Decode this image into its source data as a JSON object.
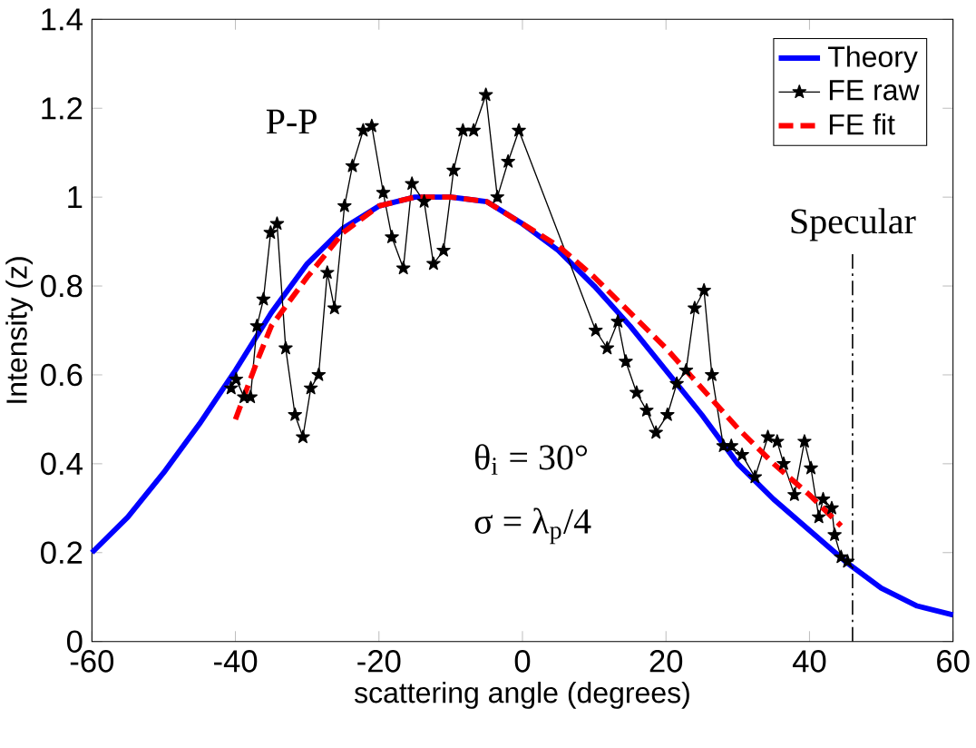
{
  "chart_data": {
    "type": "line",
    "xlabel": "scattering angle (degrees)",
    "ylabel": "Intensity (z)",
    "xlim": [
      -60,
      60
    ],
    "ylim": [
      0,
      1.4
    ],
    "xticks": [
      -60,
      -40,
      -20,
      0,
      20,
      40,
      60
    ],
    "yticks": [
      0,
      0.2,
      0.4,
      0.6,
      0.8,
      1,
      1.2,
      1.4
    ],
    "grid": false,
    "legend": "top right",
    "annotations": [
      "P-P",
      "θ$_{i}$ = 30°",
      "σ = λ$_{p}$/4"
    ],
    "ref_lines": [
      {
        "axis": "x",
        "value": 46,
        "label": "Specular",
        "line_style": "dashdot",
        "color": "#000000"
      }
    ],
    "series": [
      {
        "name": "Theory",
        "color": "#0000ff",
        "marker": "none",
        "line_style": "solid",
        "x": [
          -60,
          -55,
          -50,
          -45,
          -40,
          -35,
          -30,
          -25,
          -20,
          -15,
          -10,
          -5,
          0,
          5,
          10,
          15,
          20,
          25,
          30,
          35,
          40,
          45,
          50,
          55,
          60
        ],
        "values": [
          0.2,
          0.28,
          0.38,
          0.49,
          0.61,
          0.74,
          0.85,
          0.93,
          0.98,
          1.0,
          1.0,
          0.99,
          0.94,
          0.88,
          0.8,
          0.71,
          0.61,
          0.51,
          0.4,
          0.32,
          0.25,
          0.18,
          0.12,
          0.08,
          0.06
        ]
      },
      {
        "name": "FE raw",
        "color": "#000000",
        "marker": "star",
        "line_style": "solid",
        "x": [
          -40.6,
          -39.9,
          -38.8,
          -37.9,
          -37.0,
          -36.1,
          -35.1,
          -34.2,
          -33.0,
          -31.7,
          -30.6,
          -29.5,
          -28.4,
          -27.2,
          -26.2,
          -24.8,
          -23.7,
          -22.2,
          -21.0,
          -19.4,
          -18.2,
          -16.6,
          -15.4,
          -13.7,
          -12.4,
          -11.0,
          -9.6,
          -8.3,
          -6.8,
          -5.1,
          -3.5,
          -2.0,
          -0.5,
          10.2,
          11.8,
          13.3,
          14.4,
          15.9,
          17.3,
          18.6,
          20.2,
          21.5,
          22.8,
          24.0,
          25.3,
          26.4,
          28.0,
          29.1,
          30.6,
          32.4,
          34.2,
          35.5,
          36.4,
          37.9,
          39.3,
          40.2,
          41.3,
          41.9,
          43.1,
          43.5,
          44.4,
          45.3
        ],
        "values": [
          0.57,
          0.59,
          0.55,
          0.55,
          0.71,
          0.77,
          0.92,
          0.94,
          0.66,
          0.51,
          0.46,
          0.57,
          0.6,
          0.83,
          0.75,
          0.98,
          1.07,
          1.15,
          1.16,
          1.01,
          0.91,
          0.84,
          1.03,
          0.99,
          0.85,
          0.88,
          1.06,
          1.15,
          1.15,
          1.23,
          1.0,
          1.08,
          1.15,
          0.7,
          0.66,
          0.72,
          0.63,
          0.56,
          0.52,
          0.47,
          0.51,
          0.58,
          0.61,
          0.75,
          0.79,
          0.6,
          0.44,
          0.44,
          0.42,
          0.37,
          0.46,
          0.45,
          0.4,
          0.33,
          0.45,
          0.39,
          0.28,
          0.32,
          0.3,
          0.24,
          0.19,
          0.18
        ]
      },
      {
        "name": "FE fit",
        "color": "#ff0000",
        "marker": "none",
        "line_style": "dashed",
        "x": [
          -40,
          -37,
          -35,
          -30,
          -25,
          -20,
          -15,
          -10,
          -5,
          0,
          5,
          10,
          15,
          20,
          25,
          30,
          35,
          40,
          44.4
        ],
        "values": [
          0.5,
          0.63,
          0.71,
          0.82,
          0.92,
          0.98,
          1.0,
          1.0,
          0.99,
          0.94,
          0.89,
          0.82,
          0.74,
          0.66,
          0.57,
          0.48,
          0.4,
          0.33,
          0.26
        ]
      }
    ]
  }
}
